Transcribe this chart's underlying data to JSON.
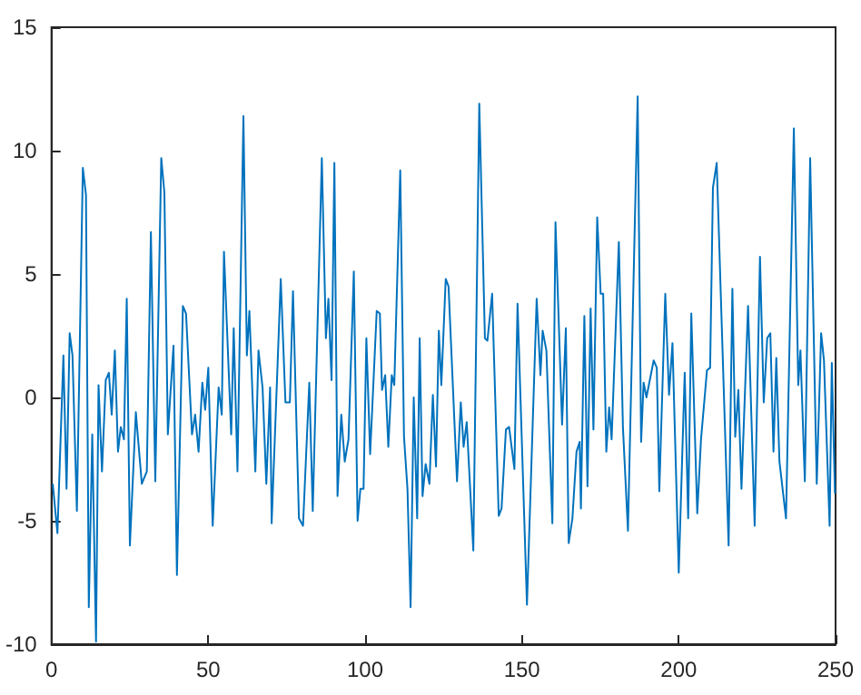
{
  "chart_data": {
    "type": "line",
    "x": [
      0.4,
      1.9,
      3.8,
      4.8,
      5.8,
      6.7,
      8.1,
      10,
      11,
      11.9,
      13,
      14.2,
      15,
      16.1,
      17.3,
      18.3,
      19.2,
      20.2,
      21.2,
      22.1,
      23.1,
      24,
      25,
      26.9,
      28.8,
      30.4,
      31.7,
      33.1,
      35,
      36,
      37.1,
      38.9,
      40,
      41.9,
      42.9,
      44.8,
      45.8,
      46.9,
      48.1,
      49,
      50,
      51.4,
      53.3,
      54.3,
      55,
      57.3,
      58.1,
      59.3,
      61.2,
      62.3,
      63.1,
      65,
      66,
      67.3,
      68.5,
      69.7,
      70.2,
      73.1,
      74.6,
      76,
      77,
      78.9,
      80.2,
      82.2,
      83.3,
      86.2,
      87.5,
      88.3,
      89.3,
      90.2,
      91.2,
      92.4,
      93.5,
      94.7,
      96.4,
      97.6,
      98.5,
      99.5,
      100.4,
      101.6,
      103.7,
      104.7,
      105.4,
      106.4,
      107.4,
      108.5,
      109.3,
      111.2,
      112.4,
      113.5,
      114.5,
      115.5,
      116.6,
      117.4,
      118.3,
      119.3,
      120.5,
      121.6,
      122.6,
      123.5,
      124.3,
      125.7,
      126.6,
      129.3,
      130.5,
      131.4,
      132.4,
      134.5,
      136.4,
      138.2,
      139,
      140.5,
      142.6,
      143.5,
      144.9,
      145.9,
      147.6,
      148.6,
      151.6,
      154.7,
      155.9,
      156.6,
      157.8,
      159.7,
      160.7,
      162.8,
      164,
      164.9,
      166.1,
      167.4,
      168.4,
      168.8,
      169.9,
      170.9,
      171.9,
      172.8,
      174,
      175.1,
      175.9,
      176.9,
      177.8,
      178.6,
      180.9,
      182.2,
      183.8,
      186.9,
      188,
      188.8,
      189.7,
      192,
      193,
      193.8,
      195.7,
      196.9,
      198,
      200,
      201.9,
      203,
      204,
      205.9,
      207.1,
      209,
      210,
      210.9,
      212.1,
      215.9,
      217.1,
      218,
      219,
      220,
      222.1,
      224.2,
      225.9,
      227.1,
      228.2,
      229.2,
      230.2,
      231.1,
      232.1,
      234.2,
      236.7,
      238.1,
      238.8,
      240.2,
      241.9,
      244,
      245.4,
      246.3,
      248.1,
      248.8,
      249.8
    ],
    "values": [
      -3.5,
      -5.5,
      1.7,
      -3.7,
      2.6,
      1.7,
      -4.6,
      9.3,
      8.2,
      -8.5,
      -1.5,
      -9.9,
      0.5,
      -3.0,
      0.7,
      1.0,
      -0.7,
      1.9,
      -2.2,
      -1.2,
      -1.7,
      4.0,
      -6.0,
      -0.6,
      -3.5,
      -3.0,
      6.7,
      -3.4,
      9.7,
      8.3,
      -1.5,
      2.1,
      -7.2,
      3.7,
      3.4,
      -1.5,
      -0.7,
      -2.2,
      0.6,
      -0.5,
      1.2,
      -5.2,
      0.4,
      -0.7,
      5.9,
      -1.5,
      2.8,
      -3.0,
      11.4,
      1.7,
      3.5,
      -3.0,
      1.9,
      0.4,
      -3.5,
      0.4,
      -5.1,
      4.8,
      -0.2,
      -0.2,
      4.3,
      -4.9,
      -5.2,
      0.6,
      -4.6,
      9.7,
      2.4,
      4.0,
      0.7,
      9.5,
      -4.0,
      -0.7,
      -2.6,
      -1.7,
      5.1,
      -5.0,
      -3.7,
      -3.7,
      2.4,
      -2.3,
      3.5,
      3.4,
      0.3,
      0.9,
      -2.0,
      0.9,
      0.5,
      9.2,
      -1.6,
      -3.7,
      -8.5,
      0,
      -4.9,
      2.4,
      -4.0,
      -2.7,
      -3.5,
      0.1,
      -2.8,
      2.7,
      0.5,
      4.8,
      4.5,
      -3.4,
      -0.2,
      -2.0,
      -1.0,
      -6.2,
      11.9,
      2.4,
      2.3,
      4.2,
      -4.8,
      -4.5,
      -1.3,
      -1.2,
      -2.9,
      3.8,
      -8.4,
      4.0,
      0.9,
      2.7,
      1.9,
      -5.1,
      7.1,
      -1.1,
      2.8,
      -5.9,
      -4.9,
      -2.2,
      -1.8,
      -4.5,
      3.3,
      -3.6,
      3.6,
      -1.3,
      7.3,
      4.2,
      4.2,
      -2.2,
      -0.4,
      -1.7,
      6.3,
      -1.2,
      -5.4,
      12.2,
      -1.8,
      0.6,
      0,
      1.5,
      1.2,
      -3.8,
      4.2,
      0.1,
      2.2,
      -7.1,
      1.0,
      -4.9,
      3.4,
      -4.7,
      -1.7,
      1.1,
      1.2,
      8.5,
      9.5,
      -6.0,
      4.4,
      -1.6,
      0.3,
      -3.7,
      3.7,
      -5.2,
      5.7,
      -0.2,
      2.4,
      2.6,
      -2.2,
      1.6,
      -2.6,
      -4.9,
      10.9,
      0.5,
      1.9,
      -3.4,
      9.7,
      -3.5,
      2.6,
      1.5,
      -5.2,
      1.4,
      -3.9
    ],
    "color": "#0072bd",
    "xlim": [
      0,
      250
    ],
    "xticks": [
      0,
      50,
      100,
      150,
      200,
      250
    ],
    "ylim": [
      -10,
      15
    ],
    "yticks": [
      -10,
      -5,
      0,
      5,
      10,
      15
    ],
    "grid": false,
    "marker": "none",
    "line_style": "solid"
  }
}
